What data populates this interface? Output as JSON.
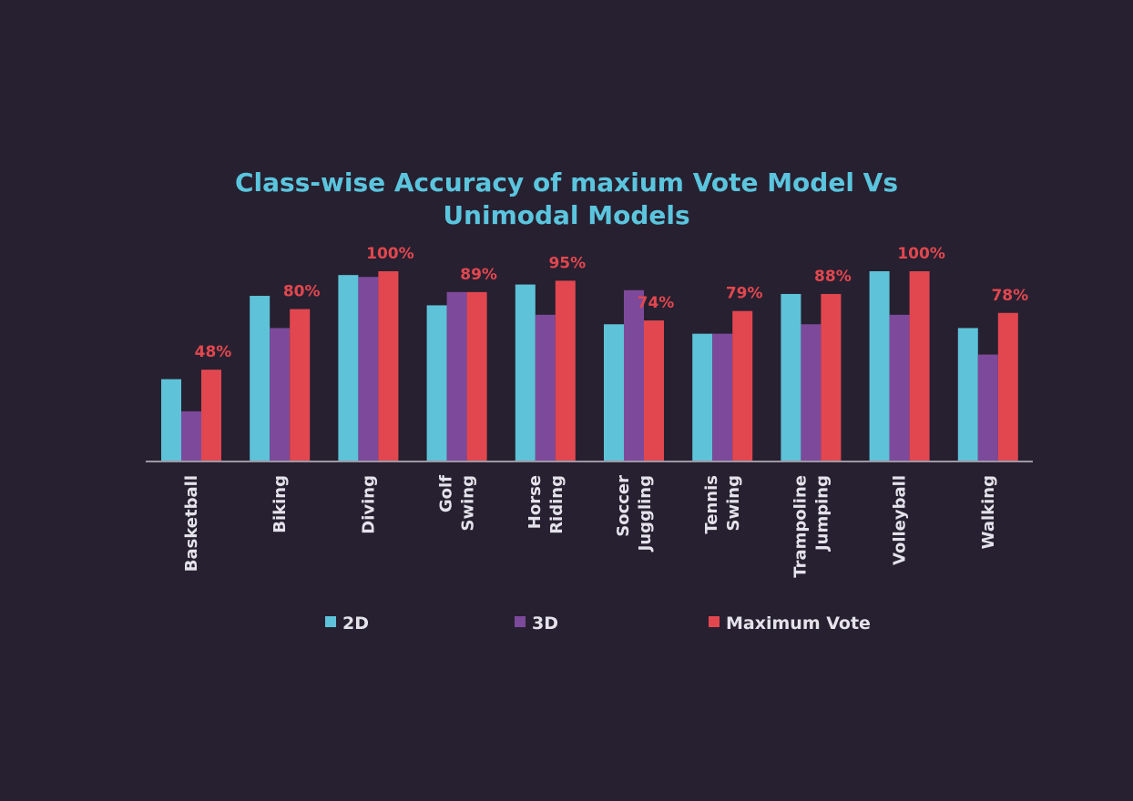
{
  "chart_data": {
    "type": "bar",
    "title_lines": [
      "Class-wise Accuracy of maxium Vote Model Vs",
      "Unimodal Models"
    ],
    "categories": [
      [
        "Basketball"
      ],
      [
        "Biking"
      ],
      [
        "Diving"
      ],
      [
        "Golf",
        "Swing"
      ],
      [
        "Horse",
        "Riding"
      ],
      [
        "Soccer",
        "Juggling"
      ],
      [
        "Tennis",
        "Swing"
      ],
      [
        "Trampoline",
        "Jumping"
      ],
      [
        "Volleyball"
      ],
      [
        "Walking"
      ]
    ],
    "series": [
      {
        "name": "2D",
        "color": "#5ec2d8",
        "values": [
          43,
          87,
          98,
          82,
          93,
          72,
          67,
          88,
          100,
          70
        ]
      },
      {
        "name": "3D",
        "color": "#7d4a9b",
        "values": [
          26,
          70,
          97,
          89,
          77,
          90,
          67,
          72,
          77,
          56
        ]
      },
      {
        "name": "Maximum Vote",
        "color": "#e2474f",
        "values": [
          48,
          80,
          100,
          89,
          95,
          74,
          79,
          88,
          100,
          78
        ]
      }
    ],
    "data_labels": [
      "48%",
      "80%",
      "100%",
      "89%",
      "95%",
      "74%",
      "79%",
      "88%",
      "100%",
      "78%"
    ],
    "ylim": [
      0,
      100
    ],
    "grid": false,
    "legend_position": "bottom"
  }
}
